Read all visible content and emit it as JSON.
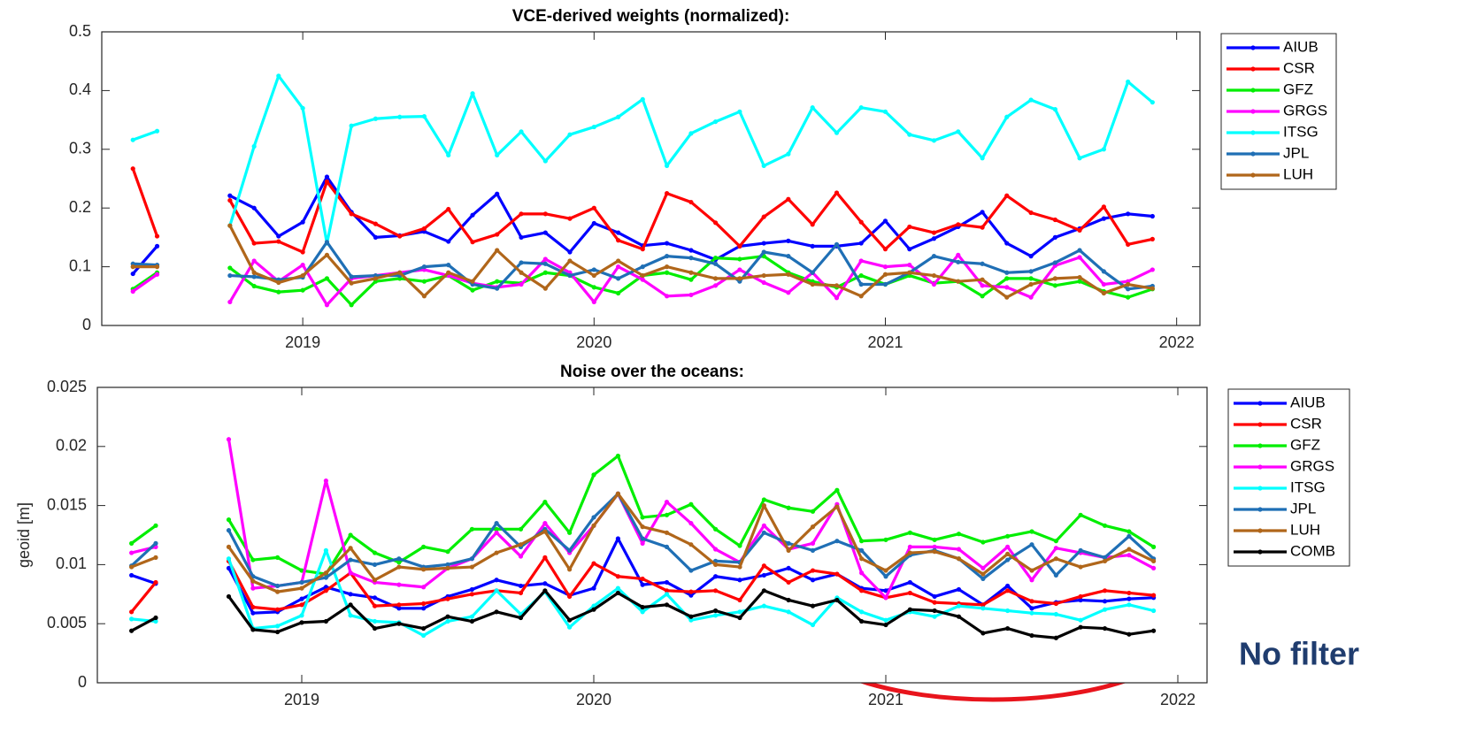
{
  "chart_data": [
    {
      "type": "line",
      "title": "VCE-derived weights (normalized):",
      "x": [
        2018.417,
        2018.5,
        2018.583,
        2018.667,
        2018.75,
        2018.833,
        2018.917,
        2019.0,
        2019.083,
        2019.167,
        2019.25,
        2019.333,
        2019.417,
        2019.5,
        2019.583,
        2019.667,
        2019.75,
        2019.833,
        2019.917,
        2020.0,
        2020.083,
        2020.167,
        2020.25,
        2020.333,
        2020.417,
        2020.5,
        2020.583,
        2020.667,
        2020.75,
        2020.833,
        2020.917,
        2021.0,
        2021.083,
        2021.167,
        2021.25,
        2021.333,
        2021.417,
        2021.5,
        2021.583,
        2021.667,
        2021.75,
        2021.833,
        2021.917
      ],
      "xlim": [
        2018.31,
        2022.08
      ],
      "xticks": [
        2019,
        2020,
        2021,
        2022
      ],
      "ylim": [
        0,
        0.5
      ],
      "yticks": [
        0,
        0.1,
        0.2,
        0.3,
        0.4,
        0.5
      ],
      "grid": false,
      "legend": "outside-right",
      "series": [
        {
          "name": "AIUB",
          "color": "#0000ff",
          "values": [
            0.088,
            0.135,
            null,
            null,
            0.221,
            0.2,
            0.152,
            0.176,
            0.253,
            0.193,
            0.15,
            0.153,
            0.16,
            0.143,
            0.188,
            0.224,
            0.15,
            0.158,
            0.125,
            0.174,
            0.158,
            0.136,
            0.14,
            0.128,
            0.112,
            0.135,
            0.14,
            0.144,
            0.135,
            0.135,
            0.14,
            0.178,
            0.13,
            0.148,
            0.168,
            0.193,
            0.14,
            0.118,
            0.15,
            0.165,
            0.182,
            0.19,
            0.186
          ]
        },
        {
          "name": "CSR",
          "color": "#ff0000",
          "values": [
            0.267,
            0.152,
            null,
            null,
            0.213,
            0.14,
            0.143,
            0.125,
            0.245,
            0.19,
            0.173,
            0.152,
            0.165,
            0.198,
            0.142,
            0.155,
            0.19,
            0.19,
            0.182,
            0.2,
            0.145,
            0.13,
            0.225,
            0.21,
            0.175,
            0.135,
            0.185,
            0.215,
            0.172,
            0.226,
            0.176,
            0.13,
            0.168,
            0.158,
            0.172,
            0.167,
            0.221,
            0.192,
            0.18,
            0.162,
            0.202,
            0.138,
            0.147
          ]
        },
        {
          "name": "GFZ",
          "color": "#00ee00",
          "values": [
            0.062,
            0.09,
            null,
            null,
            0.098,
            0.067,
            0.057,
            0.06,
            0.08,
            0.035,
            0.075,
            0.08,
            0.075,
            0.085,
            0.06,
            0.075,
            0.072,
            0.09,
            0.085,
            0.065,
            0.055,
            0.085,
            0.09,
            0.078,
            0.115,
            0.113,
            0.118,
            0.09,
            0.075,
            0.065,
            0.085,
            0.07,
            0.085,
            0.072,
            0.075,
            0.05,
            0.08,
            0.08,
            0.068,
            0.075,
            0.058,
            0.048,
            0.062
          ]
        },
        {
          "name": "GRGS",
          "color": "#ff00ff",
          "values": [
            0.058,
            0.087,
            null,
            null,
            0.04,
            0.11,
            0.075,
            0.103,
            0.035,
            0.08,
            0.085,
            0.09,
            0.095,
            0.085,
            0.072,
            0.065,
            0.07,
            0.113,
            0.09,
            0.04,
            0.1,
            0.078,
            0.05,
            0.052,
            0.068,
            0.095,
            0.073,
            0.056,
            0.09,
            0.047,
            0.11,
            0.1,
            0.103,
            0.07,
            0.12,
            0.068,
            0.065,
            0.048,
            0.102,
            0.116,
            0.07,
            0.075,
            0.095
          ]
        },
        {
          "name": "ITSG",
          "color": "#00ffff",
          "values": [
            0.316,
            0.331,
            null,
            null,
            0.17,
            0.305,
            0.425,
            0.37,
            0.14,
            0.34,
            0.352,
            0.355,
            0.356,
            0.29,
            0.395,
            0.29,
            0.33,
            0.28,
            0.325,
            0.338,
            0.355,
            0.385,
            0.272,
            0.327,
            0.347,
            0.364,
            0.272,
            0.292,
            0.371,
            0.328,
            0.371,
            0.364,
            0.325,
            0.315,
            0.33,
            0.285,
            0.355,
            0.384,
            0.368,
            0.285,
            0.3,
            0.415,
            0.38
          ]
        },
        {
          "name": "JPL",
          "color": "#1f6fb5",
          "values": [
            0.105,
            0.103,
            null,
            null,
            0.085,
            0.083,
            0.078,
            0.082,
            0.142,
            0.083,
            0.085,
            0.085,
            0.1,
            0.103,
            0.07,
            0.063,
            0.107,
            0.105,
            0.085,
            0.095,
            0.08,
            0.1,
            0.118,
            0.115,
            0.105,
            0.075,
            0.125,
            0.118,
            0.09,
            0.138,
            0.07,
            0.07,
            0.09,
            0.118,
            0.108,
            0.105,
            0.09,
            0.092,
            0.107,
            0.128,
            0.092,
            0.062,
            0.067
          ]
        },
        {
          "name": "LUH",
          "color": "#b0661a",
          "values": [
            0.1,
            0.1,
            null,
            null,
            0.17,
            0.09,
            0.073,
            0.085,
            0.12,
            0.072,
            0.08,
            0.09,
            0.05,
            0.09,
            0.075,
            0.128,
            0.09,
            0.063,
            0.11,
            0.085,
            0.11,
            0.085,
            0.1,
            0.09,
            0.08,
            0.08,
            0.085,
            0.087,
            0.07,
            0.068,
            0.05,
            0.087,
            0.09,
            0.085,
            0.075,
            0.078,
            0.048,
            0.07,
            0.08,
            0.082,
            0.055,
            0.07,
            0.063
          ]
        }
      ]
    },
    {
      "type": "line",
      "title": "Noise over the oceans:",
      "y_label": "geoid [m]",
      "annotation": "No filter",
      "x": [
        2018.417,
        2018.5,
        2018.583,
        2018.667,
        2018.75,
        2018.833,
        2018.917,
        2019.0,
        2019.083,
        2019.167,
        2019.25,
        2019.333,
        2019.417,
        2019.5,
        2019.583,
        2019.667,
        2019.75,
        2019.833,
        2019.917,
        2020.0,
        2020.083,
        2020.167,
        2020.25,
        2020.333,
        2020.417,
        2020.5,
        2020.583,
        2020.667,
        2020.75,
        2020.833,
        2020.917,
        2021.0,
        2021.083,
        2021.167,
        2021.25,
        2021.333,
        2021.417,
        2021.5,
        2021.583,
        2021.667,
        2021.75,
        2021.833,
        2021.917
      ],
      "xlim": [
        2018.3,
        2022.1
      ],
      "xticks": [
        2019,
        2020,
        2021,
        2022
      ],
      "ylim": [
        0,
        0.025
      ],
      "yticks": [
        0,
        0.005,
        0.01,
        0.015,
        0.02,
        0.025
      ],
      "grid": false,
      "legend": "outside-right",
      "series": [
        {
          "name": "AIUB",
          "color": "#0000ff",
          "values": [
            0.0091,
            0.0084,
            null,
            null,
            0.0097,
            0.0059,
            0.006,
            0.0071,
            0.0081,
            0.0075,
            0.0072,
            0.0063,
            0.0063,
            0.0073,
            0.0079,
            0.0087,
            0.0082,
            0.0084,
            0.0074,
            0.008,
            0.0122,
            0.0083,
            0.0085,
            0.0074,
            0.009,
            0.0087,
            0.0091,
            0.0097,
            0.0087,
            0.0092,
            0.008,
            0.0078,
            0.0085,
            0.0073,
            0.0079,
            0.0066,
            0.0082,
            0.0063,
            0.0068,
            0.007,
            0.0069,
            0.0071,
            0.0072
          ]
        },
        {
          "name": "CSR",
          "color": "#ff0000",
          "values": [
            0.006,
            0.0085,
            null,
            null,
            0.0103,
            0.0064,
            0.0062,
            0.0066,
            0.0078,
            0.0093,
            0.0065,
            0.0066,
            0.0067,
            0.0071,
            0.0075,
            0.0078,
            0.0076,
            0.0106,
            0.0073,
            0.0101,
            0.009,
            0.0088,
            0.0078,
            0.0077,
            0.0078,
            0.007,
            0.0099,
            0.0085,
            0.0095,
            0.0092,
            0.0078,
            0.0072,
            0.0076,
            0.0068,
            0.0067,
            0.0066,
            0.0078,
            0.0069,
            0.0067,
            0.0073,
            0.0078,
            0.0076,
            0.0074
          ]
        },
        {
          "name": "GFZ",
          "color": "#00ee00",
          "values": [
            0.0118,
            0.0133,
            null,
            null,
            0.0138,
            0.0104,
            0.0106,
            0.0095,
            0.0092,
            0.0125,
            0.011,
            0.0102,
            0.0115,
            0.0111,
            0.013,
            0.013,
            0.013,
            0.0153,
            0.0127,
            0.0176,
            0.0192,
            0.014,
            0.0142,
            0.0151,
            0.013,
            0.0116,
            0.0155,
            0.0148,
            0.0145,
            0.0163,
            0.012,
            0.0121,
            0.0127,
            0.0121,
            0.0126,
            0.0119,
            0.0124,
            0.0128,
            0.012,
            0.0142,
            0.0133,
            0.0128,
            0.0115
          ]
        },
        {
          "name": "GRGS",
          "color": "#ff00ff",
          "values": [
            0.011,
            0.0115,
            null,
            null,
            0.0206,
            0.008,
            0.0082,
            0.0085,
            0.0171,
            0.0093,
            0.0085,
            0.0083,
            0.0081,
            0.0097,
            0.0105,
            0.0127,
            0.0107,
            0.0135,
            0.011,
            0.0133,
            0.016,
            0.0118,
            0.0153,
            0.0135,
            0.0113,
            0.0102,
            0.0133,
            0.0113,
            0.0118,
            0.0151,
            0.0093,
            0.0072,
            0.0115,
            0.0115,
            0.0113,
            0.0097,
            0.0115,
            0.0087,
            0.0114,
            0.011,
            0.0106,
            0.0108,
            0.0097
          ]
        },
        {
          "name": "ITSG",
          "color": "#00ffff",
          "values": [
            0.0054,
            0.0052,
            null,
            null,
            0.0105,
            0.0046,
            0.0048,
            0.0057,
            0.0112,
            0.0057,
            0.0052,
            0.0051,
            0.004,
            0.0052,
            0.0056,
            0.0078,
            0.0058,
            0.0077,
            0.0047,
            0.0065,
            0.008,
            0.006,
            0.0075,
            0.0053,
            0.0057,
            0.006,
            0.0065,
            0.006,
            0.0049,
            0.0072,
            0.006,
            0.0053,
            0.006,
            0.0056,
            0.0065,
            0.0063,
            0.0061,
            0.0059,
            0.0058,
            0.0053,
            0.0062,
            0.0066,
            0.0061
          ]
        },
        {
          "name": "JPL",
          "color": "#1f6fb5",
          "values": [
            0.0099,
            0.0118,
            null,
            null,
            0.0129,
            0.009,
            0.0082,
            0.0085,
            0.0089,
            0.0104,
            0.01,
            0.0105,
            0.0098,
            0.01,
            0.0105,
            0.0135,
            0.0115,
            0.013,
            0.0112,
            0.014,
            0.016,
            0.0122,
            0.0115,
            0.0095,
            0.0103,
            0.0102,
            0.0127,
            0.0118,
            0.0112,
            0.012,
            0.0112,
            0.009,
            0.0108,
            0.0112,
            0.0105,
            0.0088,
            0.0104,
            0.0117,
            0.0091,
            0.0112,
            0.0106,
            0.0124,
            0.0105
          ]
        },
        {
          "name": "LUH",
          "color": "#b0661a",
          "values": [
            0.0098,
            0.0106,
            null,
            null,
            0.0115,
            0.0086,
            0.0077,
            0.008,
            0.0093,
            0.0114,
            0.0087,
            0.0098,
            0.0096,
            0.0097,
            0.0098,
            0.011,
            0.0117,
            0.0128,
            0.0096,
            0.0133,
            0.016,
            0.0132,
            0.0127,
            0.0117,
            0.01,
            0.0098,
            0.015,
            0.0112,
            0.0132,
            0.0149,
            0.0105,
            0.0095,
            0.011,
            0.0111,
            0.0105,
            0.0092,
            0.0109,
            0.0095,
            0.0105,
            0.0098,
            0.0103,
            0.0113,
            0.0103
          ]
        },
        {
          "name": "COMB",
          "color": "#000000",
          "values": [
            0.0044,
            0.0055,
            null,
            null,
            0.0073,
            0.0045,
            0.0043,
            0.0051,
            0.0052,
            0.0066,
            0.0046,
            0.005,
            0.0046,
            0.0056,
            0.0052,
            0.006,
            0.0055,
            0.0078,
            0.0053,
            0.0062,
            0.0076,
            0.0064,
            0.0066,
            0.0056,
            0.0061,
            0.0055,
            0.0078,
            0.007,
            0.0065,
            0.007,
            0.0052,
            0.0049,
            0.0062,
            0.0061,
            0.0056,
            0.0042,
            0.0046,
            0.004,
            0.0038,
            0.0047,
            0.0046,
            0.0041,
            0.0044
          ]
        }
      ]
    }
  ]
}
